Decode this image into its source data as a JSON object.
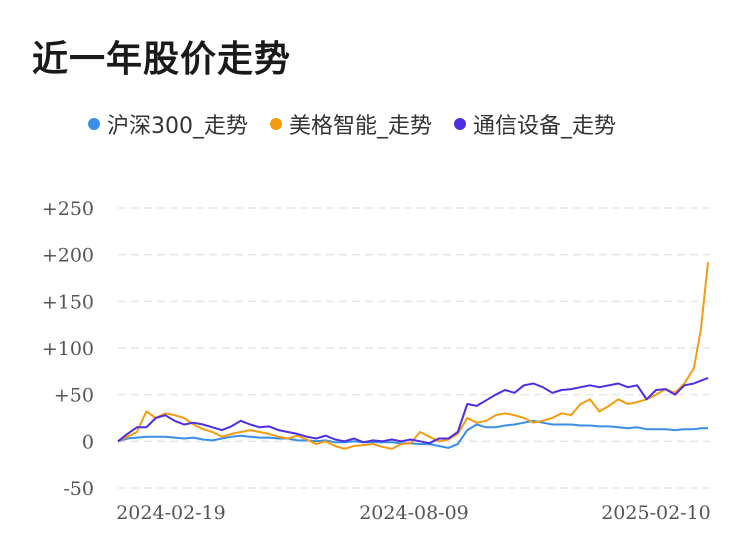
{
  "title": "近一年股价走势",
  "colors": {
    "grid": "#e6e6e6",
    "axis": "#dddddd"
  },
  "chart_data": {
    "type": "line",
    "y_ticks": [
      "+250",
      "+200",
      "+150",
      "+100",
      "+50",
      "0",
      "-50"
    ],
    "y_tick_values": [
      250,
      200,
      150,
      100,
      50,
      0,
      -50
    ],
    "ylim": [
      -50,
      250
    ],
    "x_ticks": [
      "2024-02-19",
      "2024-08-09",
      "2025-02-10"
    ],
    "grid": true,
    "legend_position": "top",
    "x": [
      0,
      4,
      8,
      12,
      16,
      20,
      24,
      28,
      32,
      36,
      40,
      44,
      48,
      52,
      56,
      60,
      64,
      68,
      72,
      76,
      80,
      84,
      88,
      92,
      96,
      100,
      104,
      108,
      112,
      116,
      120,
      124,
      128,
      132,
      136,
      140,
      144,
      148,
      152,
      156,
      160,
      164,
      168,
      172,
      176,
      180,
      184,
      188,
      192,
      196,
      200,
      204,
      208,
      212,
      216,
      220,
      224,
      228,
      232,
      236,
      240,
      244,
      247,
      250
    ],
    "series": [
      {
        "name": "沪深300_走势",
        "color": "#3a8ee6",
        "values": [
          0,
          3,
          4,
          5,
          5,
          5,
          4,
          3,
          4,
          2,
          1,
          3,
          5,
          6,
          5,
          4,
          4,
          3,
          3,
          1,
          1,
          0,
          1,
          -1,
          -1,
          0,
          -1,
          -1,
          -1,
          -1,
          -2,
          -2,
          -3,
          -3,
          -5,
          -7,
          -3,
          12,
          18,
          15,
          15,
          17,
          18,
          20,
          22,
          20,
          18,
          18,
          18,
          17,
          17,
          16,
          16,
          15,
          14,
          15,
          13,
          13,
          13,
          12,
          13,
          13,
          14,
          14
        ]
      },
      {
        "name": "美格智能_走势",
        "color": "#f39c12",
        "values": [
          0,
          5,
          10,
          32,
          25,
          30,
          28,
          25,
          18,
          13,
          10,
          5,
          8,
          10,
          12,
          10,
          8,
          5,
          3,
          6,
          2,
          -3,
          0,
          -5,
          -8,
          -5,
          -4,
          -3,
          -6,
          -8,
          -3,
          -2,
          10,
          5,
          0,
          2,
          8,
          25,
          20,
          22,
          28,
          30,
          28,
          25,
          20,
          22,
          25,
          30,
          28,
          40,
          45,
          32,
          38,
          45,
          40,
          42,
          45,
          50,
          56,
          52,
          62,
          78,
          120,
          192
        ]
      },
      {
        "name": "通信设备_走势",
        "color": "#4b2fe0",
        "values": [
          0,
          8,
          15,
          15,
          25,
          28,
          22,
          18,
          20,
          18,
          15,
          12,
          16,
          22,
          18,
          15,
          16,
          12,
          10,
          8,
          5,
          3,
          6,
          2,
          0,
          3,
          -1,
          1,
          0,
          2,
          0,
          2,
          0,
          -2,
          3,
          3,
          10,
          40,
          38,
          44,
          50,
          55,
          52,
          60,
          62,
          58,
          52,
          55,
          56,
          58,
          60,
          58,
          60,
          62,
          58,
          60,
          45,
          55,
          56,
          50,
          60,
          62,
          65,
          68
        ]
      }
    ]
  }
}
